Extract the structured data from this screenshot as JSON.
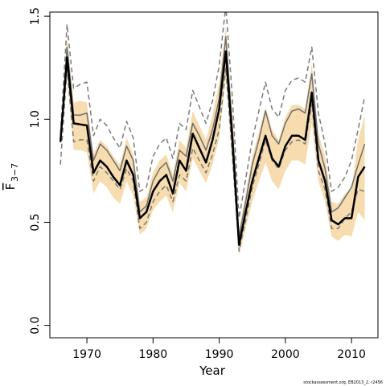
{
  "chart_data": {
    "type": "line",
    "x_label": "Year",
    "y_label": {
      "symbol": "F",
      "subscript": "3−7"
    },
    "footnote": "stockassessment.org, EB2013_2, r2456",
    "x": [
      1966,
      1967,
      1968,
      1969,
      1970,
      1971,
      1972,
      1973,
      1974,
      1975,
      1976,
      1977,
      1978,
      1979,
      1980,
      1981,
      1982,
      1983,
      1984,
      1985,
      1986,
      1987,
      1988,
      1989,
      1990,
      1991,
      1992,
      1993,
      1994,
      1995,
      1996,
      1997,
      1998,
      1999,
      2000,
      2001,
      2002,
      2003,
      2004,
      2005,
      2006,
      2007,
      2008,
      2009,
      2010,
      2011,
      2012
    ],
    "xlim": [
      1964.4,
      2014.0
    ],
    "xticks": [
      1970,
      1980,
      1990,
      2000,
      2010
    ],
    "ylim": [
      -0.06,
      1.52
    ],
    "yticks": [
      {
        "value": 0,
        "label": "0.0"
      },
      0.5,
      {
        "value": 1,
        "label": "1.0"
      },
      1.5
    ],
    "series": [
      {
        "type": "band",
        "color": "#f6dcae",
        "upper": [
          0.91,
          1.4,
          1.08,
          1.09,
          1.08,
          0.83,
          0.9,
          0.87,
          0.82,
          0.78,
          0.91,
          0.83,
          0.6,
          0.62,
          0.74,
          0.8,
          0.83,
          0.73,
          0.9,
          0.86,
          1.04,
          0.97,
          0.9,
          1.02,
          1.18,
          1.45,
          1.02,
          0.46,
          0.64,
          0.82,
          0.94,
          1.06,
          0.95,
          0.9,
          1.01,
          1.07,
          1.07,
          1.05,
          1.27,
          0.93,
          0.82,
          0.6,
          0.59,
          0.64,
          0.66,
          0.9,
          1.02
        ],
        "lower": [
          0.87,
          1.2,
          0.85,
          0.85,
          0.84,
          0.64,
          0.7,
          0.67,
          0.62,
          0.59,
          0.7,
          0.63,
          0.44,
          0.47,
          0.56,
          0.6,
          0.63,
          0.55,
          0.69,
          0.65,
          0.81,
          0.75,
          0.69,
          0.78,
          0.91,
          1.2,
          0.78,
          0.34,
          0.47,
          0.6,
          0.7,
          0.79,
          0.7,
          0.66,
          0.75,
          0.8,
          0.8,
          0.78,
          0.98,
          0.7,
          0.6,
          0.43,
          0.41,
          0.44,
          0.43,
          0.55,
          0.51
        ]
      },
      {
        "color": "#7a7a7a",
        "dashed": true,
        "width": 1.5,
        "values": [
          0.93,
          1.46,
          1.15,
          1.17,
          1.18,
          0.92,
          1.0,
          0.97,
          0.91,
          0.86,
          0.99,
          0.91,
          0.65,
          0.67,
          0.82,
          0.88,
          0.91,
          0.81,
          0.98,
          0.95,
          1.14,
          1.06,
          0.98,
          1.09,
          1.26,
          1.55,
          1.1,
          0.52,
          0.71,
          0.9,
          1.04,
          1.18,
          1.05,
          1.01,
          1.14,
          1.19,
          1.2,
          1.18,
          1.35,
          1.03,
          0.88,
          0.65,
          0.67,
          0.72,
          0.8,
          0.95,
          1.11
        ]
      },
      {
        "color": "#7a7a7a",
        "dashed": true,
        "width": 1.5,
        "values": [
          0.78,
          1.25,
          0.89,
          0.9,
          0.9,
          0.7,
          0.77,
          0.74,
          0.7,
          0.66,
          0.76,
          0.7,
          0.47,
          0.5,
          0.6,
          0.65,
          0.68,
          0.6,
          0.73,
          0.7,
          0.86,
          0.8,
          0.74,
          0.83,
          0.95,
          1.25,
          0.82,
          0.36,
          0.51,
          0.67,
          0.78,
          0.9,
          0.8,
          0.76,
          0.85,
          0.89,
          0.9,
          0.88,
          1.08,
          0.75,
          0.66,
          0.47,
          0.47,
          0.52,
          0.55,
          0.66,
          0.65
        ]
      },
      {
        "color": "#6e6e6e",
        "dashed": false,
        "width": 1.5,
        "values": [
          0.89,
          1.35,
          1.02,
          1.02,
          1.03,
          0.8,
          0.88,
          0.85,
          0.8,
          0.75,
          0.87,
          0.8,
          0.55,
          0.58,
          0.7,
          0.76,
          0.79,
          0.7,
          0.85,
          0.82,
          0.98,
          0.92,
          0.85,
          0.95,
          1.1,
          1.4,
          0.95,
          0.43,
          0.6,
          0.78,
          0.9,
          1.04,
          0.92,
          0.88,
          0.98,
          1.04,
          1.05,
          1.03,
          1.22,
          0.88,
          0.76,
          0.55,
          0.57,
          0.62,
          0.67,
          0.78,
          0.88
        ]
      },
      {
        "color": "#000000",
        "dashed": false,
        "width": 2.5,
        "values": [
          0.89,
          1.3,
          0.98,
          0.975,
          0.97,
          0.74,
          0.8,
          0.77,
          0.72,
          0.68,
          0.8,
          0.73,
          0.52,
          0.55,
          0.65,
          0.7,
          0.73,
          0.64,
          0.8,
          0.75,
          0.93,
          0.86,
          0.79,
          0.9,
          1.05,
          1.33,
          0.9,
          0.39,
          0.55,
          0.7,
          0.81,
          0.92,
          0.81,
          0.77,
          0.87,
          0.92,
          0.92,
          0.9,
          1.13,
          0.8,
          0.7,
          0.51,
          0.49,
          0.52,
          0.52,
          0.72,
          0.77
        ]
      }
    ]
  }
}
